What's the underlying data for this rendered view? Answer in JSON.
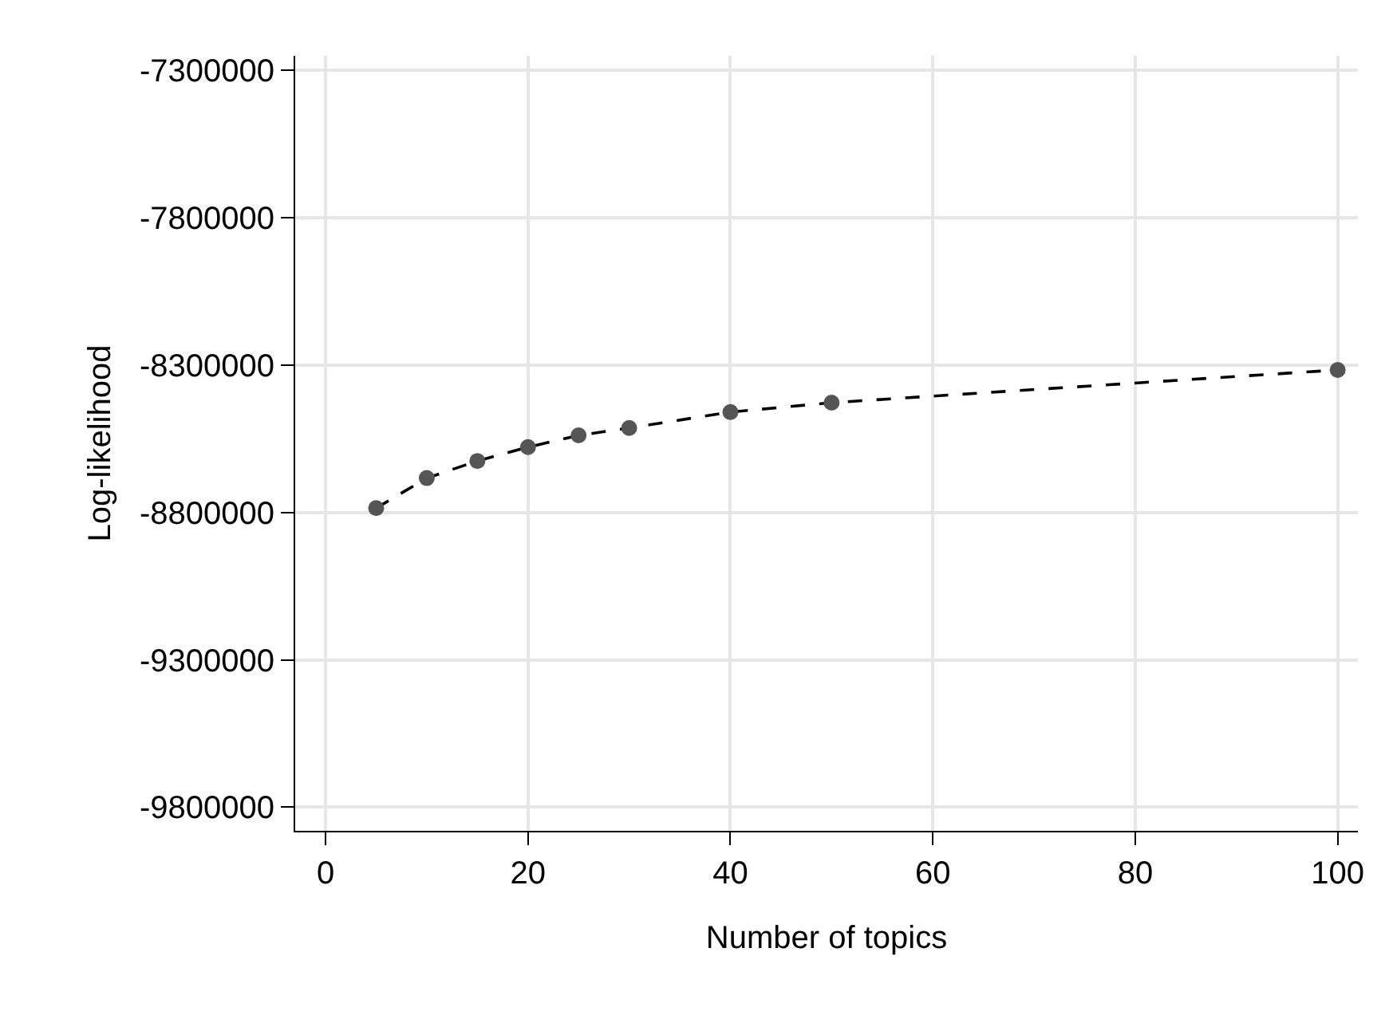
{
  "chart_data": {
    "type": "line",
    "xlabel": "Number of topics",
    "ylabel": "Log-likelihood",
    "x": [
      5,
      10,
      15,
      20,
      25,
      30,
      40,
      50,
      100
    ],
    "series": [
      {
        "color": "#555555",
        "values": [
          -8785000,
          -8683000,
          -8625000,
          -8578000,
          -8538000,
          -8513000,
          -8459000,
          -8427000,
          -8316000
        ]
      }
    ],
    "xlim": [
      -3,
      102
    ],
    "xticks": [
      0,
      20,
      40,
      60,
      80,
      100
    ],
    "ylim": [
      -9880000,
      -7250000
    ],
    "yticks": [
      -9800000,
      -9300000,
      -8800000,
      -8300000,
      -7800000,
      -7300000
    ],
    "grid": true,
    "marker": "circle",
    "line_style": "dashed"
  }
}
